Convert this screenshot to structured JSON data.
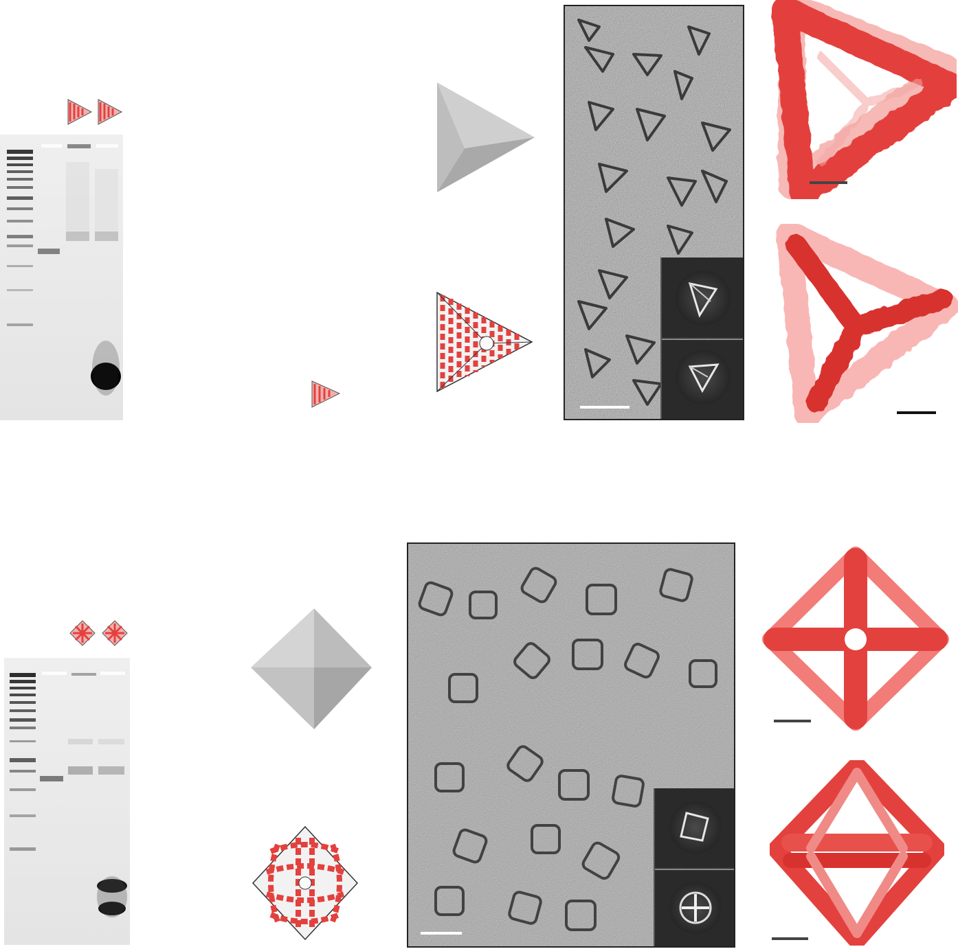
{
  "figure": {
    "panels": [
      {
        "id": "tetrahedron",
        "shape": "tetrahedron",
        "gel": {
          "lanes": 4,
          "lane_icons": [
            "tetrahedron-origami-icon",
            "tetrahedron-origami-icon"
          ]
        },
        "model": "dna-origami-tetrahedron",
        "micrograph": {
          "class_averages": 2
        },
        "maps": [
          "tetrahedron-map-face-view",
          "tetrahedron-map-vertex-view"
        ]
      },
      {
        "id": "octahedron",
        "shape": "octahedron",
        "gel": {
          "lanes": 4,
          "lane_icons": [
            "octahedron-origami-icon",
            "octahedron-origami-icon"
          ]
        },
        "model": "dna-origami-octahedron",
        "micrograph": {
          "class_averages": 2
        },
        "maps": [
          "octahedron-map-vertex-view",
          "octahedron-map-edge-view"
        ]
      }
    ],
    "colors": {
      "accent_red": "#e3413e",
      "map_red": "#e8504c",
      "map_light": "#f27c78",
      "dna_white": "#e6e6e6",
      "scale_bar": "#444444",
      "polyhedron_light": "#d0d0d0",
      "polyhedron_mid": "#bcbcbc",
      "polyhedron_dark": "#a8a8a8"
    }
  }
}
